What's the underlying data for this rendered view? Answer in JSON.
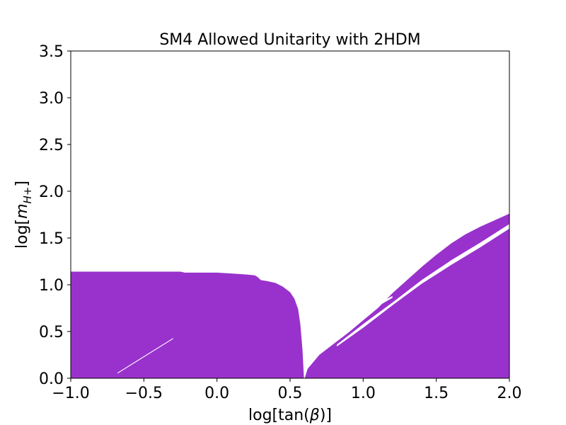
{
  "chart_data": {
    "type": "area",
    "title": "SM4 Allowed Unitarity with 2HDM",
    "xlabel_prefix": "log[tan(",
    "xlabel_symbol": "β",
    "xlabel_suffix": ")]",
    "ylabel_prefix": "log[",
    "ylabel_symbol": "m",
    "ylabel_subscript": "H+",
    "ylabel_suffix": "]",
    "xlim": [
      -1.0,
      2.0
    ],
    "ylim": [
      0.0,
      3.5
    ],
    "xticks": [
      -1.0,
      -0.5,
      0.0,
      0.5,
      1.0,
      1.5,
      2.0
    ],
    "xtick_labels": [
      "−1.0",
      "−0.5",
      "0.0",
      "0.5",
      "1.0",
      "1.5",
      "2.0"
    ],
    "yticks": [
      0.0,
      0.5,
      1.0,
      1.5,
      2.0,
      2.5,
      3.0,
      3.5
    ],
    "ytick_labels": [
      "0.0",
      "0.5",
      "1.0",
      "1.5",
      "2.0",
      "2.5",
      "3.0",
      "3.5"
    ],
    "grid": false,
    "fill_color": "#9932cc",
    "regions": [
      {
        "upper_boundary": [
          [
            -1.0,
            1.14
          ],
          [
            -0.25,
            1.14
          ],
          [
            -0.22,
            1.13
          ],
          [
            0.0,
            1.13
          ],
          [
            0.1,
            1.12
          ],
          [
            0.2,
            1.11
          ],
          [
            0.26,
            1.1
          ],
          [
            0.28,
            1.08
          ],
          [
            0.3,
            1.05
          ],
          [
            0.34,
            1.04
          ],
          [
            0.4,
            1.02
          ],
          [
            0.45,
            0.98
          ],
          [
            0.5,
            0.92
          ],
          [
            0.53,
            0.85
          ],
          [
            0.555,
            0.74
          ],
          [
            0.57,
            0.58
          ],
          [
            0.585,
            0.3
          ],
          [
            0.595,
            0.0
          ]
        ]
      },
      {
        "upper_boundary": [
          [
            0.6,
            0.0
          ],
          [
            0.62,
            0.1
          ],
          [
            0.7,
            0.25
          ],
          [
            0.8,
            0.37
          ],
          [
            0.9,
            0.49
          ],
          [
            1.0,
            0.62
          ],
          [
            1.1,
            0.75
          ],
          [
            1.2,
            0.91
          ],
          [
            1.3,
            1.05
          ],
          [
            1.4,
            1.19
          ],
          [
            1.5,
            1.32
          ],
          [
            1.6,
            1.44
          ],
          [
            1.7,
            1.54
          ],
          [
            1.8,
            1.62
          ],
          [
            1.9,
            1.69
          ],
          [
            2.0,
            1.76
          ]
        ]
      }
    ],
    "gaps": [
      {
        "lower_edge": [
          [
            -0.68,
            0.05
          ],
          [
            -0.3,
            0.42
          ]
        ],
        "upper_edge": [
          [
            -0.68,
            0.06
          ],
          [
            -0.3,
            0.43
          ]
        ]
      },
      {
        "lower_edge": [
          [
            0.82,
            0.34
          ],
          [
            1.0,
            0.54
          ],
          [
            1.2,
            0.78
          ],
          [
            1.4,
            1.01
          ],
          [
            1.6,
            1.21
          ],
          [
            1.8,
            1.4
          ],
          [
            2.0,
            1.6
          ]
        ],
        "upper_edge": [
          [
            0.82,
            0.36
          ],
          [
            1.0,
            0.58
          ],
          [
            1.2,
            0.81
          ],
          [
            1.4,
            1.05
          ],
          [
            1.6,
            1.26
          ],
          [
            1.8,
            1.45
          ],
          [
            2.0,
            1.65
          ]
        ]
      },
      {
        "lower_edge": [
          [
            0.9,
            0.63
          ],
          [
            1.0,
            0.7
          ],
          [
            1.1,
            0.77
          ],
          [
            1.2,
            0.86
          ]
        ],
        "upper_edge": [
          [
            0.9,
            0.64
          ],
          [
            1.0,
            0.72
          ],
          [
            1.1,
            0.8
          ],
          [
            1.2,
            0.88
          ]
        ]
      }
    ]
  }
}
